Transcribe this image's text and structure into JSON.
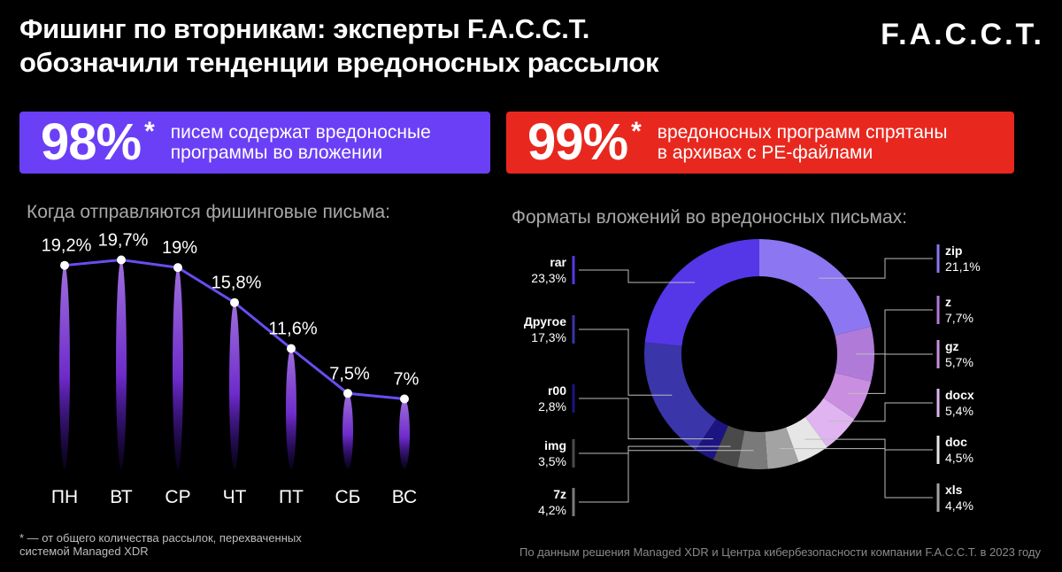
{
  "title_line1": "Фишинг по вторникам: эксперты F.A.C.C.T.",
  "title_line2": "обозначили тенденции вредоносных рассылок",
  "logo": "F.A.C.C.T.",
  "stat_left": {
    "value": "98%",
    "star": "*",
    "line1": "писем содержат вредоносные",
    "line2": "программы во вложении",
    "color": "#6b3ff6"
  },
  "stat_right": {
    "value": "99%",
    "star": "*",
    "line1": "вредоносных программ спрятаны",
    "line2": "в архивах с PE-файлами",
    "color": "#e8281f"
  },
  "footnote_line1": "* — от общего количества рассылок, перехваченных",
  "footnote_line2": "системой Managed XDR",
  "source": "По данным решения Managed XDR и Центра кибербезопасности компании F.A.C.C.T. в 2023 году",
  "chart_data": [
    {
      "type": "line",
      "title": "Когда отправляются фишинговые письма:",
      "categories": [
        "ПН",
        "ВТ",
        "СР",
        "ЧТ",
        "ПТ",
        "СБ",
        "ВС"
      ],
      "values": [
        19.2,
        19.7,
        19.0,
        15.8,
        11.6,
        7.5,
        7.0
      ],
      "value_labels": [
        "19,2%",
        "19,7%",
        "19%",
        "15,8%",
        "11,6%",
        "7,5%",
        "7%"
      ],
      "line_color": "#6a4cf0"
    },
    {
      "type": "pie",
      "title": "Форматы вложений во вредоносных письмах:",
      "slices": [
        {
          "label": "zip",
          "value_label": "21,1%",
          "value": 21.1,
          "color": "#8c76f2"
        },
        {
          "label": "z",
          "value_label": "7,7%",
          "value": 7.7,
          "color": "#b07ad8"
        },
        {
          "label": "gz",
          "value_label": "5,7%",
          "value": 5.7,
          "color": "#c98ee0"
        },
        {
          "label": "docx",
          "value_label": "5,4%",
          "value": 5.4,
          "color": "#dfb4f0"
        },
        {
          "label": "doc",
          "value_label": "4,5%",
          "value": 4.5,
          "color": "#e6e6e6"
        },
        {
          "label": "xls",
          "value_label": "4,4%",
          "value": 4.4,
          "color": "#a3a3a3"
        },
        {
          "label": "7z",
          "value_label": "4,2%",
          "value": 4.2,
          "color": "#7a7a7a"
        },
        {
          "label": "img",
          "value_label": "3,5%",
          "value": 3.5,
          "color": "#4a4a4a"
        },
        {
          "label": "r00",
          "value_label": "2,8%",
          "value": 2.8,
          "color": "#1c1480"
        },
        {
          "label": "Другое",
          "value_label": "17,3%",
          "value": 17.3,
          "color": "#3a35a8"
        },
        {
          "label": "rar",
          "value_label": "23,3%",
          "value": 23.3,
          "color": "#5537e8"
        }
      ]
    }
  ]
}
